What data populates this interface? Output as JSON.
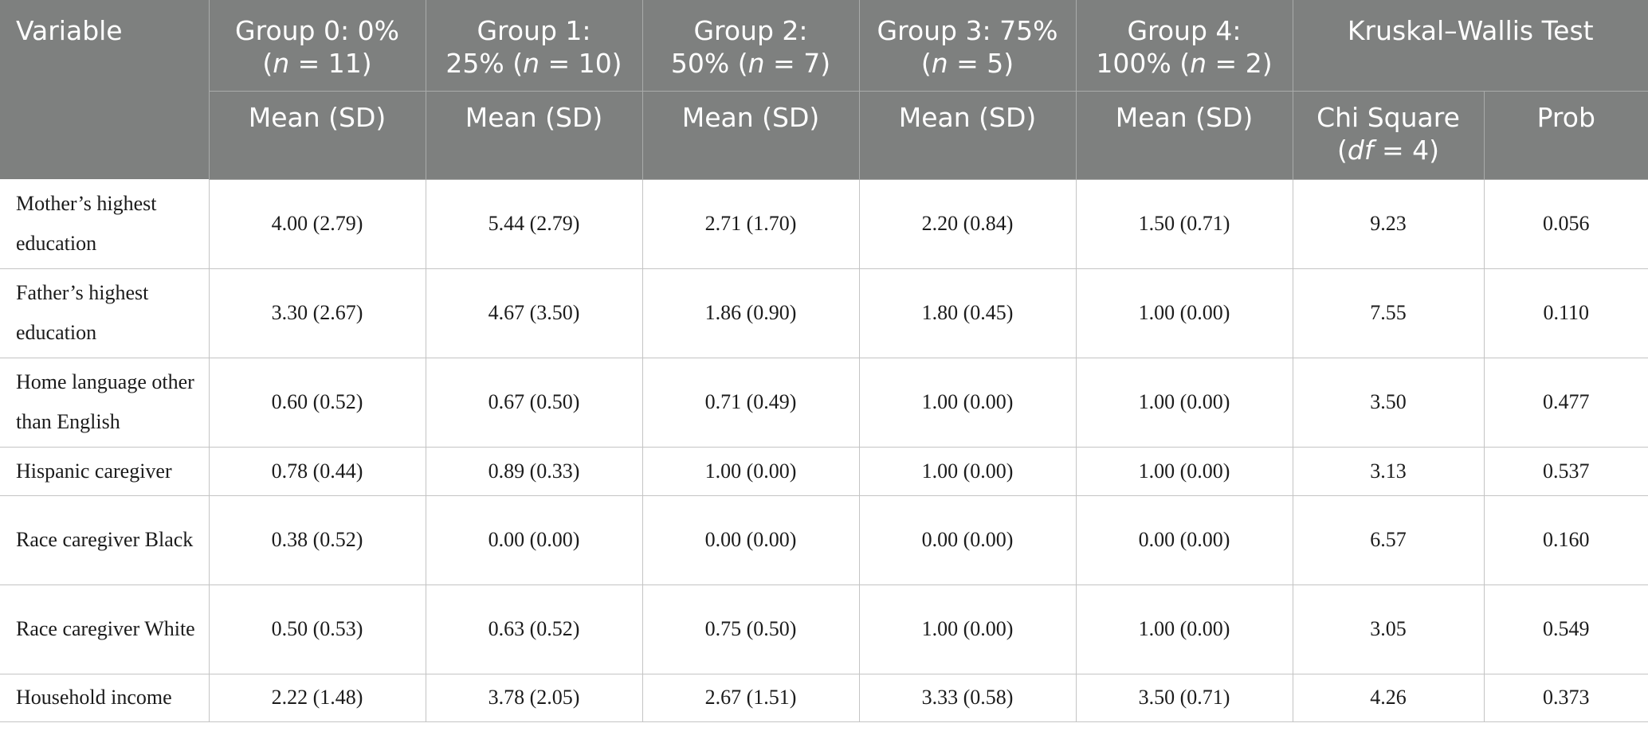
{
  "header": {
    "variable": "Variable",
    "groups": [
      {
        "line1": "Group 0: 0%",
        "n_open": "(",
        "n_var": "n",
        "n_rest": " = 11)"
      },
      {
        "line1": "Group 1:",
        "line2_pre": "25% (",
        "n_var": "n",
        "n_rest": " = 10)"
      },
      {
        "line1": "Group 2:",
        "line2_pre": "50% (",
        "n_var": "n",
        "n_rest": " = 7)"
      },
      {
        "line1": "Group 3: 75%",
        "n_open": "(",
        "n_var": "n",
        "n_rest": " = 5)"
      },
      {
        "line1": "Group 4:",
        "line2_pre": "100% (",
        "n_var": "n",
        "n_rest": " = 2)"
      }
    ],
    "test": "Kruskal–Wallis Test",
    "mean_sd": "Mean (SD)",
    "chi": {
      "line1": "Chi Square",
      "open": "(",
      "df_var": "df",
      "rest": " = 4)"
    },
    "prob": "Prob"
  },
  "rows": [
    {
      "label": "Mother’s highest education",
      "values": [
        "4.00 (2.79)",
        "5.44 (2.79)",
        "2.71 (1.70)",
        "2.20 (0.84)",
        "1.50 (0.71)"
      ],
      "chi": "9.23",
      "prob": "0.056"
    },
    {
      "label": "Father’s highest education",
      "values": [
        "3.30 (2.67)",
        "4.67 (3.50)",
        "1.86 (0.90)",
        "1.80 (0.45)",
        "1.00 (0.00)"
      ],
      "chi": "7.55",
      "prob": "0.110"
    },
    {
      "label": "Home language other than English",
      "values": [
        "0.60 (0.52)",
        "0.67 (0.50)",
        "0.71 (0.49)",
        "1.00 (0.00)",
        "1.00 (0.00)"
      ],
      "chi": "3.50",
      "prob": "0.477"
    },
    {
      "label": "Hispanic caregiver",
      "values": [
        "0.78 (0.44)",
        "0.89 (0.33)",
        "1.00 (0.00)",
        "1.00 (0.00)",
        "1.00 (0.00)"
      ],
      "chi": "3.13",
      "prob": "0.537"
    },
    {
      "label": "Race caregiver Black",
      "values": [
        "0.38 (0.52)",
        "0.00 (0.00)",
        "0.00 (0.00)",
        "0.00 (0.00)",
        "0.00 (0.00)"
      ],
      "chi": "6.57",
      "prob": "0.160"
    },
    {
      "label": "Race caregiver White",
      "values": [
        "0.50 (0.53)",
        "0.63 (0.52)",
        "0.75 (0.50)",
        "1.00 (0.00)",
        "1.00 (0.00)"
      ],
      "chi": "3.05",
      "prob": "0.549"
    },
    {
      "label": "Household income",
      "values": [
        "2.22 (1.48)",
        "3.78 (2.05)",
        "2.67 (1.51)",
        "3.33 (0.58)",
        "3.50 (0.71)"
      ],
      "chi": "4.26",
      "prob": "0.373"
    }
  ]
}
